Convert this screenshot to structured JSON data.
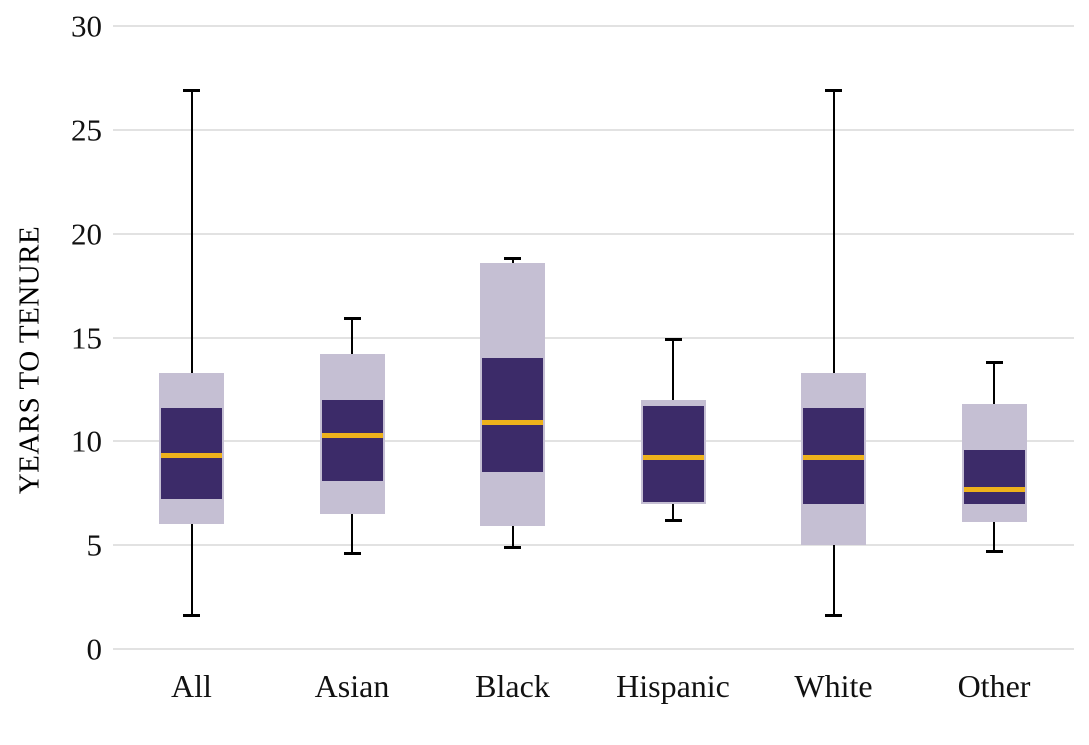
{
  "chart_data": {
    "type": "box",
    "title": "",
    "ylabel": "YEARS TO TENURE",
    "xlabel": "",
    "ylim": [
      0,
      30
    ],
    "yticks": [
      0,
      5,
      10,
      15,
      20,
      25,
      30
    ],
    "grid": true,
    "legend": false,
    "categories": [
      "All",
      "Asian",
      "Black",
      "Hispanic",
      "White",
      "Other"
    ],
    "series": [
      {
        "category": "All",
        "whisker_low": 1.6,
        "outer_low": 6.0,
        "q1": 7.2,
        "median": 9.3,
        "q3": 11.6,
        "outer_high": 13.3,
        "whisker_high": 26.9
      },
      {
        "category": "Asian",
        "whisker_low": 4.6,
        "outer_low": 6.5,
        "q1": 8.1,
        "median": 10.3,
        "q3": 12.0,
        "outer_high": 14.2,
        "whisker_high": 15.9
      },
      {
        "category": "Black",
        "whisker_low": 4.9,
        "outer_low": 5.9,
        "q1": 8.5,
        "median": 10.9,
        "q3": 14.0,
        "outer_high": 18.6,
        "whisker_high": 18.8
      },
      {
        "category": "Hispanic",
        "whisker_low": 6.2,
        "outer_low": 7.0,
        "q1": 7.1,
        "median": 9.2,
        "q3": 11.7,
        "outer_high": 12.0,
        "whisker_high": 14.9
      },
      {
        "category": "White",
        "whisker_low": 1.6,
        "outer_low": 5.0,
        "q1": 7.0,
        "median": 9.2,
        "q3": 11.6,
        "outer_high": 13.3,
        "whisker_high": 26.9
      },
      {
        "category": "Other",
        "whisker_low": 4.7,
        "outer_low": 6.1,
        "q1": 7.0,
        "median": 7.7,
        "q3": 9.6,
        "outer_high": 11.8,
        "whisker_high": 13.8
      }
    ],
    "colors": {
      "box_inner": "#3c2b69",
      "box_outer": "#c5bfd3",
      "median": "#eeb21b",
      "whisker": "#000000",
      "gridline": "#e2e2e2",
      "text": "#111111"
    }
  }
}
